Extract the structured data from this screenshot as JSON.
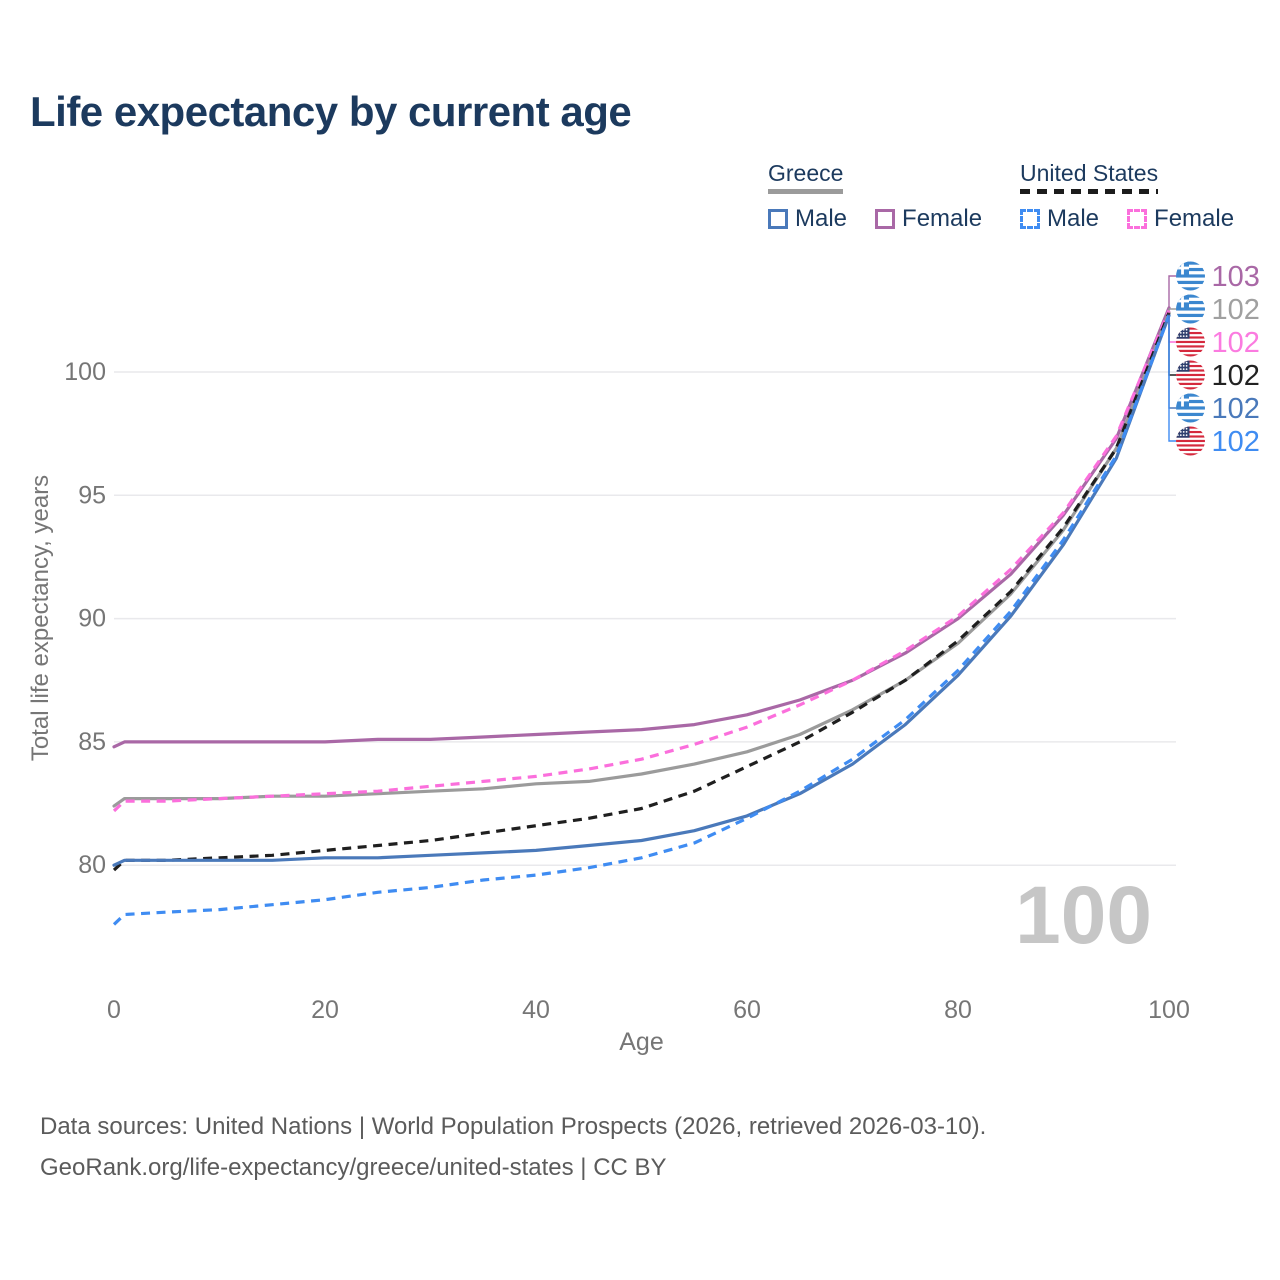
{
  "title": "Life expectancy by current age",
  "legend": {
    "groups": [
      {
        "country": "Greece",
        "line_style": "solid",
        "items": [
          {
            "label": "Male",
            "color": "#4a79ba"
          },
          {
            "label": "Female",
            "color": "#a968a6"
          }
        ]
      },
      {
        "country": "United States",
        "line_style": "dashed",
        "items": [
          {
            "label": "Male",
            "color": "#3f8cf2"
          },
          {
            "label": "Female",
            "color": "#fb6fdc"
          }
        ]
      }
    ]
  },
  "watermark": "100",
  "footer": {
    "line1": "Data sources: United Nations | World Population Prospects (2026, retrieved 2026-03-10).",
    "line2": "GeoRank.org/life-expectancy/greece/united-states | CC BY"
  },
  "chart_data": {
    "type": "line",
    "title": "Life expectancy by current age",
    "xlabel": "Age",
    "ylabel": "Total life expectancy, years",
    "x_ticks": [
      0,
      20,
      40,
      60,
      80,
      100
    ],
    "y_ticks": [
      80,
      85,
      90,
      95,
      100
    ],
    "xlim": [
      0,
      100
    ],
    "ylim": [
      77,
      103.5
    ],
    "grid": "horizontal",
    "legend_position": "top-right",
    "x": [
      0,
      1,
      5,
      10,
      15,
      20,
      25,
      30,
      35,
      40,
      45,
      50,
      55,
      60,
      65,
      70,
      75,
      80,
      85,
      90,
      95,
      100
    ],
    "series": [
      {
        "name": "Greece Female",
        "country": "Greece",
        "sex": "female",
        "style": "solid",
        "color": "#a968a6",
        "values": [
          84.8,
          85.0,
          85.0,
          85.0,
          85.0,
          85.0,
          85.1,
          85.1,
          85.2,
          85.3,
          85.4,
          85.5,
          85.7,
          86.1,
          86.7,
          87.5,
          88.6,
          90.0,
          91.8,
          94.2,
          97.3,
          102.6
        ],
        "end_label": {
          "text": "103",
          "flag": "greece",
          "color": "#a968a6"
        }
      },
      {
        "name": "Greece Both Sexes",
        "country": "Greece",
        "sex": "both",
        "style": "solid",
        "color": "#9b9b9b",
        "values": [
          82.4,
          82.7,
          82.7,
          82.7,
          82.8,
          82.8,
          82.9,
          83.0,
          83.1,
          83.3,
          83.4,
          83.7,
          84.1,
          84.6,
          85.3,
          86.3,
          87.5,
          89.0,
          91.0,
          93.6,
          96.9,
          102.4
        ],
        "end_label": {
          "text": "102",
          "flag": "greece",
          "color": "#a0a0a0"
        }
      },
      {
        "name": "United States Female",
        "country": "United States",
        "sex": "female",
        "style": "dashed",
        "color": "#fb6fdc",
        "values": [
          82.2,
          82.6,
          82.6,
          82.7,
          82.8,
          82.9,
          83.0,
          83.2,
          83.4,
          83.6,
          83.9,
          84.3,
          84.9,
          85.6,
          86.5,
          87.5,
          88.7,
          90.1,
          92.0,
          94.3,
          97.4,
          102.5
        ],
        "end_label": {
          "text": "102",
          "flag": "us",
          "color": "#fb7be0"
        }
      },
      {
        "name": "United States Both Sexes",
        "country": "United States",
        "sex": "both",
        "style": "dashed",
        "color": "#1f1f1f",
        "values": [
          79.8,
          80.2,
          80.2,
          80.3,
          80.4,
          80.6,
          80.8,
          81.0,
          81.3,
          81.6,
          81.9,
          82.3,
          83.0,
          84.0,
          85.0,
          86.2,
          87.5,
          89.1,
          91.1,
          93.7,
          96.9,
          102.4
        ],
        "end_label": {
          "text": "102",
          "flag": "us",
          "color": "#222222"
        }
      },
      {
        "name": "Greece Male",
        "country": "Greece",
        "sex": "male",
        "style": "solid",
        "color": "#4a79ba",
        "values": [
          80.0,
          80.2,
          80.2,
          80.2,
          80.2,
          80.3,
          80.3,
          80.4,
          80.5,
          80.6,
          80.8,
          81.0,
          81.4,
          82.0,
          82.9,
          84.1,
          85.7,
          87.7,
          90.1,
          93.0,
          96.5,
          102.3
        ],
        "end_label": {
          "text": "102",
          "flag": "greece",
          "color": "#4a79ba"
        }
      },
      {
        "name": "United States Male",
        "country": "United States",
        "sex": "male",
        "style": "dashed",
        "color": "#3f8cf2",
        "values": [
          77.6,
          78.0,
          78.1,
          78.2,
          78.4,
          78.6,
          78.9,
          79.1,
          79.4,
          79.6,
          79.9,
          80.3,
          80.9,
          81.9,
          83.0,
          84.3,
          85.9,
          87.9,
          90.3,
          93.2,
          96.6,
          102.3
        ],
        "end_label": {
          "text": "102",
          "flag": "us",
          "color": "#3f8cf2"
        }
      }
    ]
  },
  "colors": {
    "title_text": "#1c3a5e",
    "axis_text": "#767676",
    "gridline": "#e9e9ec",
    "watermark": "#c6c6c6",
    "footer_text": "#5b5b5b",
    "greek_flag_blue": "#3b87cf",
    "us_flag_red": "#d5293d",
    "us_flag_navy": "#2e3f6e"
  }
}
